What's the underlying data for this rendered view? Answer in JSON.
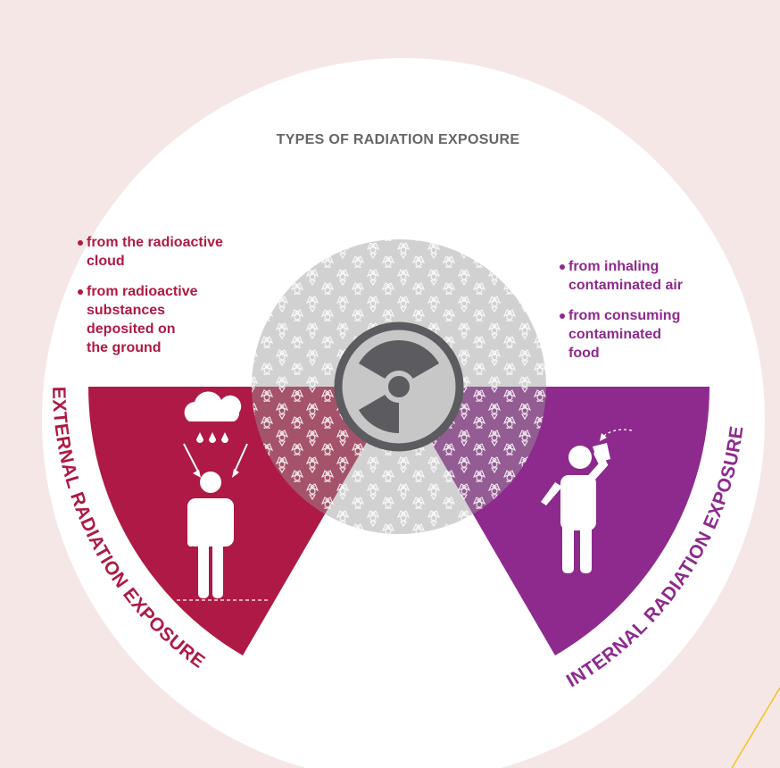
{
  "title": "TYPES OF RADIATION EXPOSURE",
  "external": {
    "label": "EXTERNAL RADIATION EXPOSURE",
    "sources": [
      [
        "from the radioactive",
        "cloud"
      ],
      [
        "from radioactive",
        "substances",
        "deposited on",
        "the ground"
      ]
    ]
  },
  "internal": {
    "label": "INTERNAL RADIATION EXPOSURE",
    "sources": [
      [
        "from inhaling",
        "contaminated air"
      ],
      [
        "from consuming",
        "contaminated",
        "food"
      ]
    ]
  }
}
